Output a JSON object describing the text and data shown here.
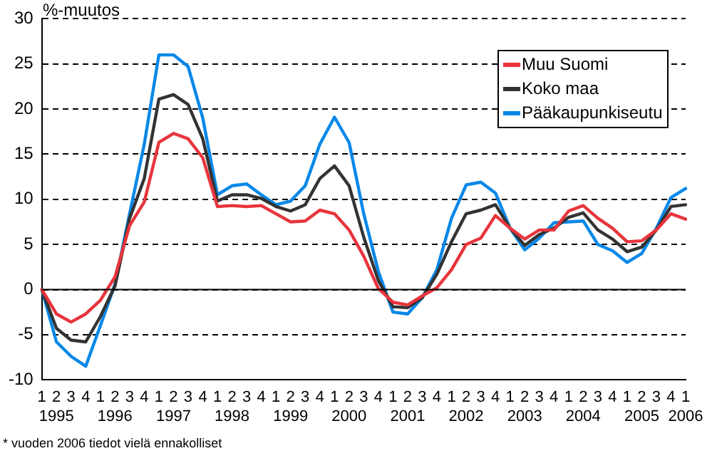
{
  "chart_data": {
    "type": "line",
    "ylabel": "%-muutos",
    "categories": [
      "1",
      "2\n1995",
      "3",
      "4",
      "1",
      "2\n1996",
      "3",
      "4",
      "1",
      "2\n1997",
      "3",
      "4",
      "1",
      "2\n1998",
      "3",
      "4",
      "1",
      "2\n1999",
      "3",
      "4",
      "1",
      "2\n2000",
      "3",
      "4",
      "1",
      "2\n2001",
      "3",
      "4",
      "1",
      "2\n2002",
      "3",
      "4",
      "1",
      "2\n2003",
      "3",
      "4",
      "1",
      "2\n2004",
      "3",
      "4",
      "1",
      "2\n2005",
      "3",
      "4",
      "1\n2006"
    ],
    "series": [
      {
        "name": "Muu Suomi",
        "color": "#e8343c",
        "values": [
          0,
          -2.7,
          -3.6,
          -2.7,
          -1.2,
          1.4,
          7.1,
          9.7,
          16.3,
          17.3,
          16.7,
          14.6,
          9.2,
          9.3,
          9.2,
          9.3,
          8.4,
          7.5,
          7.6,
          8.8,
          8.4,
          6.6,
          3.7,
          0.1,
          -1.4,
          -1.7,
          -0.7,
          0.2,
          2.2,
          5.0,
          5.7,
          8.2,
          6.8,
          5.6,
          6.6,
          6.6,
          8.7,
          9.3,
          7.9,
          6.8,
          5.3,
          5.4,
          6.6,
          8.4,
          7.8
        ]
      },
      {
        "name": "Koko maa",
        "color": "#333333",
        "values": [
          0,
          -4.3,
          -5.6,
          -5.8,
          -3.0,
          0.4,
          7.9,
          12.3,
          21.1,
          21.6,
          20.5,
          16.7,
          9.8,
          10.5,
          10.5,
          10.1,
          9.2,
          8.7,
          9.4,
          12.3,
          13.7,
          11.5,
          5.8,
          1.0,
          -1.9,
          -2.0,
          -0.9,
          1.7,
          5.3,
          8.4,
          8.8,
          9.4,
          6.8,
          4.9,
          6.1,
          6.8,
          8.0,
          8.5,
          6.6,
          5.6,
          4.2,
          4.7,
          6.6,
          9.2,
          9.4
        ]
      },
      {
        "name": "Pääkaupunkiseutu",
        "color": "#0888e8",
        "values": [
          0,
          -5.8,
          -7.4,
          -8.5,
          -4.0,
          0.6,
          8.4,
          16.1,
          26.0,
          26.0,
          24.7,
          19.0,
          10.5,
          11.5,
          11.7,
          10.5,
          9.4,
          9.8,
          11.5,
          16.1,
          19.1,
          16.3,
          8.4,
          2.0,
          -2.5,
          -2.7,
          -0.9,
          2.2,
          7.9,
          11.6,
          11.9,
          10.7,
          6.8,
          4.4,
          5.7,
          7.4,
          7.5,
          7.6,
          5.0,
          4.3,
          3.0,
          4.0,
          6.8,
          10.2,
          11.2
        ]
      }
    ],
    "ylim": [
      -10,
      30
    ],
    "yticks": [
      -10,
      -5,
      0,
      5,
      10,
      15,
      20,
      25,
      30
    ],
    "grid": "y",
    "legend": "top right",
    "marker": "none",
    "line_style": "solid",
    "annotations": [
      "* vuoden 2006 tiedot vielä ennakolliset"
    ]
  }
}
